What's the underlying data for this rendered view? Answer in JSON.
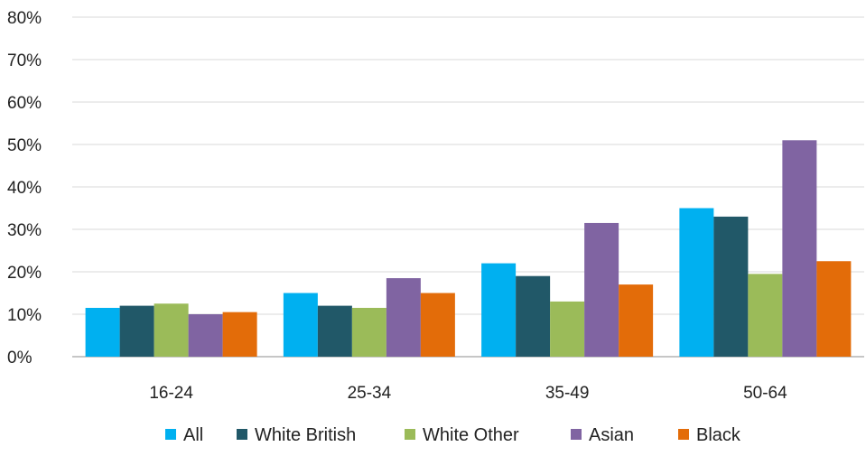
{
  "chart_data": {
    "type": "bar",
    "categories": [
      "16-24",
      "25-34",
      "35-49",
      "50-64"
    ],
    "series": [
      {
        "name": "All",
        "color": "#00b0f0",
        "values": [
          11.5,
          15,
          22,
          35
        ]
      },
      {
        "name": "White British",
        "color": "#215868",
        "values": [
          12,
          12,
          19,
          33
        ]
      },
      {
        "name": "White Other",
        "color": "#9bbb59",
        "values": [
          12.5,
          11.5,
          13,
          19.5
        ]
      },
      {
        "name": "Asian",
        "color": "#8064a2",
        "values": [
          10,
          18.5,
          31.5,
          51
        ]
      },
      {
        "name": "Black",
        "color": "#e36c09",
        "values": [
          10.5,
          15,
          17,
          22.5
        ]
      }
    ],
    "y_ticks": [
      "0%",
      "10%",
      "20%",
      "30%",
      "40%",
      "50%",
      "60%",
      "70%",
      "80%"
    ],
    "ylim": [
      0,
      80
    ],
    "grid": true,
    "legend_position": "bottom"
  }
}
